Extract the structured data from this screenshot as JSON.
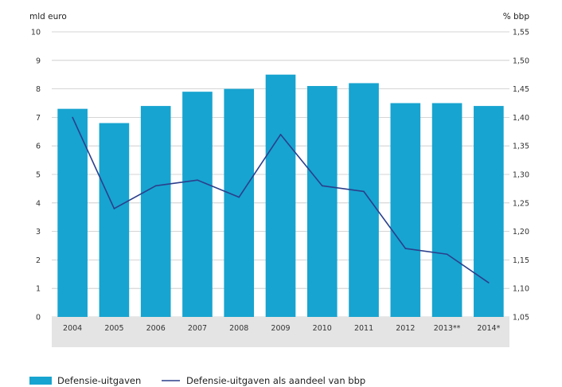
{
  "chart_data": {
    "type": "bar",
    "title": "",
    "left_axis_label": "mld euro",
    "right_axis_label": "% bbp",
    "categories": [
      "2004",
      "2005",
      "2006",
      "2007",
      "2008",
      "2009",
      "2010",
      "2011",
      "2012",
      "2013**",
      "2014*"
    ],
    "series": [
      {
        "name": "Defensie-uitgaven",
        "type": "bar",
        "axis": "left",
        "values": [
          7.3,
          6.8,
          7.4,
          7.9,
          8.0,
          8.5,
          8.1,
          8.2,
          7.5,
          7.5,
          7.4
        ]
      },
      {
        "name": "Defensie-uitgaven als aandeel van bbp",
        "type": "line",
        "axis": "right",
        "values": [
          1.4,
          1.24,
          1.28,
          1.29,
          1.26,
          1.37,
          1.28,
          1.27,
          1.17,
          1.16,
          1.11
        ]
      }
    ],
    "left_ylim": [
      0,
      10
    ],
    "left_ticks": [
      "0",
      "1",
      "2",
      "3",
      "4",
      "5",
      "6",
      "7",
      "8",
      "9",
      "10"
    ],
    "right_ylim": [
      1.05,
      1.55
    ],
    "right_ticks": [
      "1,05",
      "1,10",
      "1,15",
      "1,20",
      "1,25",
      "1,30",
      "1,35",
      "1,40",
      "1,45",
      "1,50",
      "1,55"
    ],
    "grid": true,
    "legend_position": "bottom-left",
    "colors": {
      "bar": "#17a4d0",
      "line": "#2b3f8c",
      "grid": "#c8c8c8",
      "axis_band": "#e4e4e4"
    }
  }
}
